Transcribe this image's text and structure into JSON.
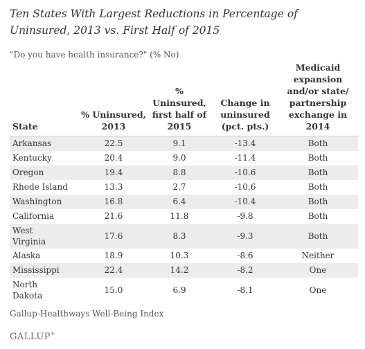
{
  "title": "Ten States With Largest Reductions in Percentage of Uninsured, 2013 vs. First Half of 2015",
  "subtitle": "\"Do you have health insurance?\" (% No)",
  "source": "Gallup-Healthways Well-Being Index",
  "logo": "GALLUP",
  "chart_data": {
    "type": "table",
    "columns": [
      "State",
      "% Uninsured, 2013",
      "% Uninsured, first half of 2015",
      "Change in uninsured (pct. pts.)",
      "Medicaid expansion and/or state/ partnership exchange in 2014"
    ],
    "rows": [
      [
        "Arkansas",
        "22.5",
        "9.1",
        "-13.4",
        "Both"
      ],
      [
        "Kentucky",
        "20.4",
        "9.0",
        "-11.4",
        "Both"
      ],
      [
        "Oregon",
        "19.4",
        "8.8",
        "-10.6",
        "Both"
      ],
      [
        "Rhode Island",
        "13.3",
        "2.7",
        "-10.6",
        "Both"
      ],
      [
        "Washington",
        "16.8",
        "6.4",
        "-10.4",
        "Both"
      ],
      [
        "California",
        "21.6",
        "11.8",
        "-9.8",
        "Both"
      ],
      [
        "West Virginia",
        "17.6",
        "8.3",
        "-9.3",
        "Both"
      ],
      [
        "Alaska",
        "18.9",
        "10.3",
        "-8.6",
        "Neither"
      ],
      [
        "Mississippi",
        "22.4",
        "14.2",
        "-8.2",
        "One"
      ],
      [
        "North Dakota",
        "15.0",
        "6.9",
        "-8.1",
        "One"
      ]
    ]
  }
}
